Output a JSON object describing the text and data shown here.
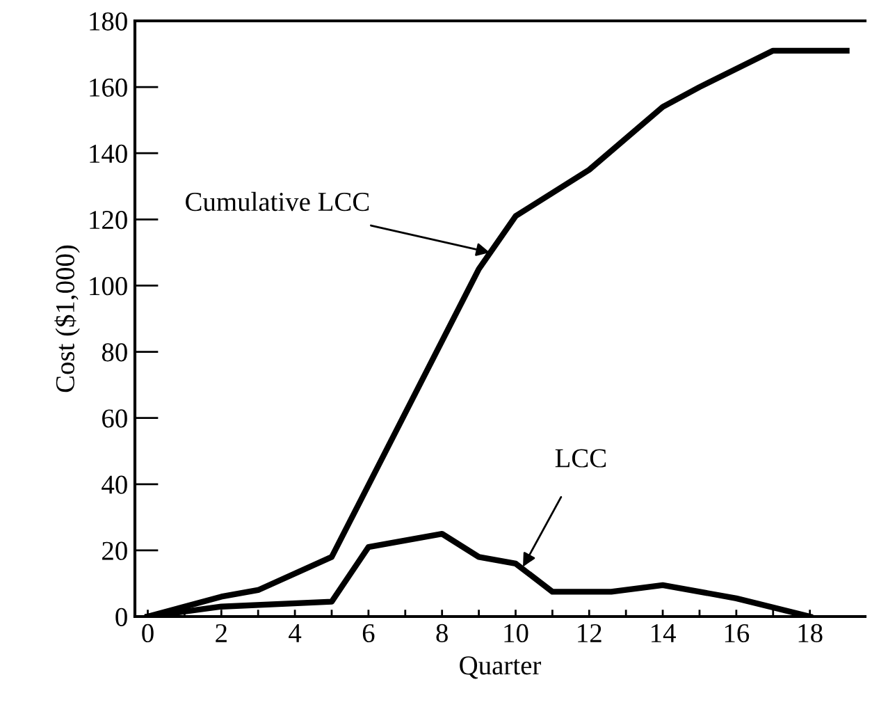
{
  "chart_data": {
    "type": "line",
    "xlabel": "Quarter",
    "ylabel": "Cost ($1,000)",
    "series": [
      {
        "color": "#000000",
        "x": [
          0,
          2,
          3,
          5,
          9,
          10,
          12,
          14,
          15,
          17,
          19
        ],
        "values": [
          0,
          6,
          8,
          18,
          105,
          121,
          135,
          154,
          160,
          171,
          171
        ]
      },
      {
        "color": "#000000",
        "x": [
          0,
          2,
          5,
          6,
          8,
          9,
          10,
          11,
          12.6,
          14,
          16,
          18
        ],
        "values": [
          0,
          3,
          4.5,
          21,
          25,
          18,
          16,
          7.5,
          7.5,
          9.5,
          5.5,
          0
        ]
      }
    ],
    "annotations": [
      {
        "text": "Cumulative LCC",
        "x": 9.3,
        "y": 110
      },
      {
        "text": "LCC",
        "x": 10.2,
        "y": 15
      }
    ],
    "xlim": [
      -0.35,
      19.5
    ],
    "ylim": [
      0,
      180
    ],
    "xticks": [
      0,
      {
        "value": 1,
        "label": null
      },
      2,
      {
        "value": 3,
        "label": null
      },
      4,
      {
        "value": 5,
        "label": null
      },
      6,
      {
        "value": 7,
        "label": null
      },
      8,
      {
        "value": 9,
        "label": null
      },
      10,
      {
        "value": 11,
        "label": null
      },
      12,
      {
        "value": 13,
        "label": null
      },
      14,
      {
        "value": 15,
        "label": null
      },
      16,
      {
        "value": 17,
        "label": null
      },
      18
    ],
    "yticks": [
      0,
      20,
      40,
      60,
      80,
      100,
      120,
      140,
      160,
      180
    ],
    "grid": false,
    "legend": false,
    "marker": "none",
    "line_style": "solid"
  }
}
